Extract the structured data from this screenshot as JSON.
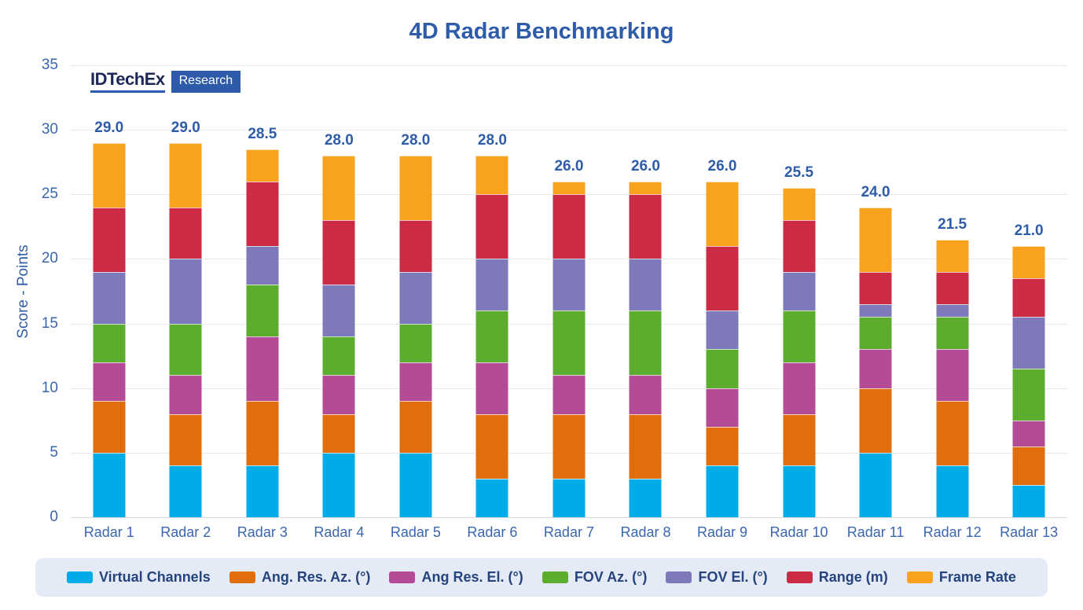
{
  "title": "4D Radar Benchmarking",
  "logo": {
    "brand": "IDTechEx",
    "badge": "Research"
  },
  "y_axis": {
    "label": "Score - Points",
    "ticks": [
      0,
      5,
      10,
      15,
      20,
      25,
      30,
      35
    ]
  },
  "colors": {
    "title_text": "#2F5CA8",
    "axis_text": "#3A66AE",
    "total_label_text": "#2E5CA8",
    "legend_bg": "#E4EBF6",
    "legend_text": "#25437C",
    "gridline": "#E9E9E9",
    "logo_navy": "#1C2957",
    "logo_blue": "#2D5AA9"
  },
  "chart_data": {
    "type": "bar",
    "stacked": true,
    "title": "4D Radar Benchmarking",
    "xlabel": "",
    "ylabel": "Score - Points",
    "ylim": [
      0,
      35
    ],
    "ytick_step": 5,
    "grid": "horizontal",
    "legend_position": "bottom",
    "categories": [
      "Radar 1",
      "Radar 2",
      "Radar 3",
      "Radar 4",
      "Radar 5",
      "Radar 6",
      "Radar 7",
      "Radar 8",
      "Radar 9",
      "Radar 10",
      "Radar 11",
      "Radar 12",
      "Radar 13"
    ],
    "series": [
      {
        "name": "Virtual Channels",
        "color": "#00ACE8",
        "values": [
          5,
          4,
          4,
          5,
          5,
          3,
          3,
          3,
          4,
          4,
          5,
          4,
          2.5
        ]
      },
      {
        "name": "Ang. Res. Az. (°)",
        "color": "#E06E0E",
        "values": [
          4,
          4,
          5,
          3,
          4,
          5,
          5,
          5,
          3,
          4,
          5,
          5,
          3
        ]
      },
      {
        "name": "Ang Res. El.  (°)",
        "color": "#B44B97",
        "values": [
          3,
          3,
          5,
          3,
          3,
          4,
          3,
          3,
          3,
          4,
          3,
          4,
          2
        ]
      },
      {
        "name": "FOV Az. (°)",
        "color": "#5CAC2E",
        "values": [
          3,
          4,
          4,
          3,
          3,
          4,
          5,
          5,
          3,
          4,
          2.5,
          2.5,
          4
        ]
      },
      {
        "name": "FOV El. (°)",
        "color": "#7E79B9",
        "values": [
          4,
          5,
          3,
          4,
          4,
          4,
          4,
          4,
          3,
          3,
          1,
          1,
          4
        ]
      },
      {
        "name": "Range (m)",
        "color": "#CB2B45",
        "values": [
          5,
          4,
          5,
          5,
          4,
          5,
          5,
          5,
          5,
          4,
          2.5,
          2.5,
          3
        ]
      },
      {
        "name": "Frame Rate",
        "color": "#F9A21D",
        "values": [
          5,
          5,
          2.5,
          5,
          5,
          3,
          1,
          1,
          5,
          2.5,
          5,
          2.5,
          2.5
        ]
      }
    ],
    "totals": [
      29.0,
      29.0,
      28.5,
      28.0,
      28.0,
      28.0,
      26.0,
      26.0,
      26.0,
      25.5,
      24.0,
      21.5,
      21.0
    ],
    "total_labels": [
      "29.0",
      "29.0",
      "28.5",
      "28.0",
      "28.0",
      "28.0",
      "26.0",
      "26.0",
      "26.0",
      "25.5",
      "24.0",
      "21.5",
      "21.0"
    ]
  }
}
